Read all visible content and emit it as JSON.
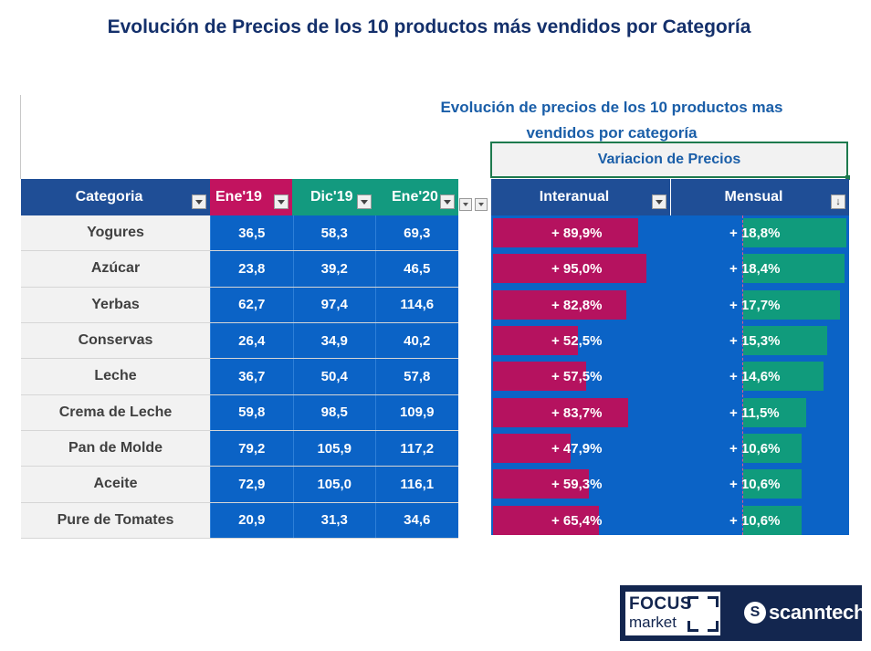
{
  "page_title": "Evolución de Precios de los 10 productos más vendidos por Categoría",
  "sheet_title_line1": "Evolución de precios de los 10 productos mas",
  "sheet_title_line2": "vendidos por categoría",
  "variacion_label": "Variacion de Precios",
  "headers": {
    "categoria": "Categoria",
    "ene19": "Ene'19",
    "dic19": "Dic'19",
    "ene20": "Ene'20",
    "interanual": "Interanual",
    "mensual": "Mensual"
  },
  "colors": {
    "navy_header": "#1f4e96",
    "magenta": "#b5125f",
    "teal": "#109b7c",
    "cell_blue": "#0b63c6",
    "title_navy": "#14306b"
  },
  "rows": [
    {
      "categoria": "Yogures",
      "ene19": "36,5",
      "dic19": "58,3",
      "ene20": "69,3",
      "interanual": "+ 89,9%",
      "mensual": "+ 18,8%",
      "interanual_value": 89.9,
      "mensual_value": 18.8
    },
    {
      "categoria": "Azúcar",
      "ene19": "23,8",
      "dic19": "39,2",
      "ene20": "46,5",
      "interanual": "+ 95,0%",
      "mensual": "+ 18,4%",
      "interanual_value": 95.0,
      "mensual_value": 18.4
    },
    {
      "categoria": "Yerbas",
      "ene19": "62,7",
      "dic19": "97,4",
      "ene20": "114,6",
      "interanual": "+ 82,8%",
      "mensual": "+ 17,7%",
      "interanual_value": 82.8,
      "mensual_value": 17.7
    },
    {
      "categoria": "Conservas",
      "ene19": "26,4",
      "dic19": "34,9",
      "ene20": "40,2",
      "interanual": "+ 52,5%",
      "mensual": "+ 15,3%",
      "interanual_value": 52.5,
      "mensual_value": 15.3
    },
    {
      "categoria": "Leche",
      "ene19": "36,7",
      "dic19": "50,4",
      "ene20": "57,8",
      "interanual": "+ 57,5%",
      "mensual": "+ 14,6%",
      "interanual_value": 57.5,
      "mensual_value": 14.6
    },
    {
      "categoria": "Crema de Leche",
      "ene19": "59,8",
      "dic19": "98,5",
      "ene20": "109,9",
      "interanual": "+ 83,7%",
      "mensual": "+ 11,5%",
      "interanual_value": 83.7,
      "mensual_value": 11.5
    },
    {
      "categoria": "Pan de Molde",
      "ene19": "79,2",
      "dic19": "105,9",
      "ene20": "117,2",
      "interanual": "+ 47,9%",
      "mensual": "+ 10,6%",
      "interanual_value": 47.9,
      "mensual_value": 10.6
    },
    {
      "categoria": "Aceite",
      "ene19": "72,9",
      "dic19": "105,0",
      "ene20": "116,1",
      "interanual": "+ 59,3%",
      "mensual": "+ 10,6%",
      "interanual_value": 59.3,
      "mensual_value": 10.6
    },
    {
      "categoria": "Pure de Tomates",
      "ene19": "20,9",
      "dic19": "31,3",
      "ene20": "34,6",
      "interanual": "+ 65,4%",
      "mensual": "+ 10,6%",
      "interanual_value": 65.4,
      "mensual_value": 10.6
    }
  ],
  "logos": {
    "focus_line1": "FOCUS",
    "focus_line2": "market",
    "scanntech": "scanntech"
  }
}
